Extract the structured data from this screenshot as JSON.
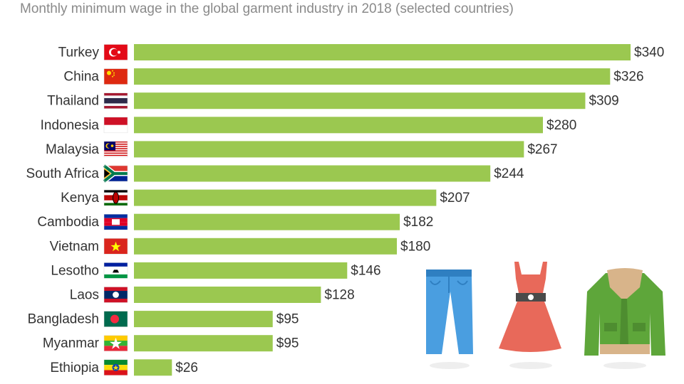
{
  "title": "Monthly minimum wage in the global garment industry in 2018 (selected countries)",
  "colors": {
    "bar": "#9bc850",
    "text": "#333333",
    "title": "#8a8a8a"
  },
  "chart_data": {
    "type": "bar",
    "orientation": "horizontal",
    "title": "Monthly minimum wage in the global garment industry in 2018 (selected countries)",
    "categories": [
      "Turkey",
      "China",
      "Thailand",
      "Indonesia",
      "Malaysia",
      "South Africa",
      "Kenya",
      "Cambodia",
      "Vietnam",
      "Lesotho",
      "Laos",
      "Bangladesh",
      "Myanmar",
      "Ethiopia"
    ],
    "values": [
      340,
      326,
      309,
      280,
      267,
      244,
      207,
      182,
      180,
      146,
      128,
      95,
      95,
      26
    ],
    "value_labels": [
      "$340",
      "$326",
      "$309",
      "$280",
      "$267",
      "$244",
      "$207",
      "$182",
      "$180",
      "$146",
      "$128",
      "$95",
      "$95",
      "$26"
    ],
    "flags": [
      "turkey-flag",
      "china-flag",
      "thailand-flag",
      "indonesia-flag",
      "malaysia-flag",
      "south-africa-flag",
      "kenya-flag",
      "cambodia-flag",
      "vietnam-flag",
      "lesotho-flag",
      "laos-flag",
      "bangladesh-flag",
      "myanmar-flag",
      "ethiopia-flag"
    ],
    "xlim": [
      0,
      340
    ],
    "grid": false,
    "legend": "none"
  },
  "illustrations": [
    "jeans-icon",
    "dress-icon",
    "jacket-icon"
  ]
}
